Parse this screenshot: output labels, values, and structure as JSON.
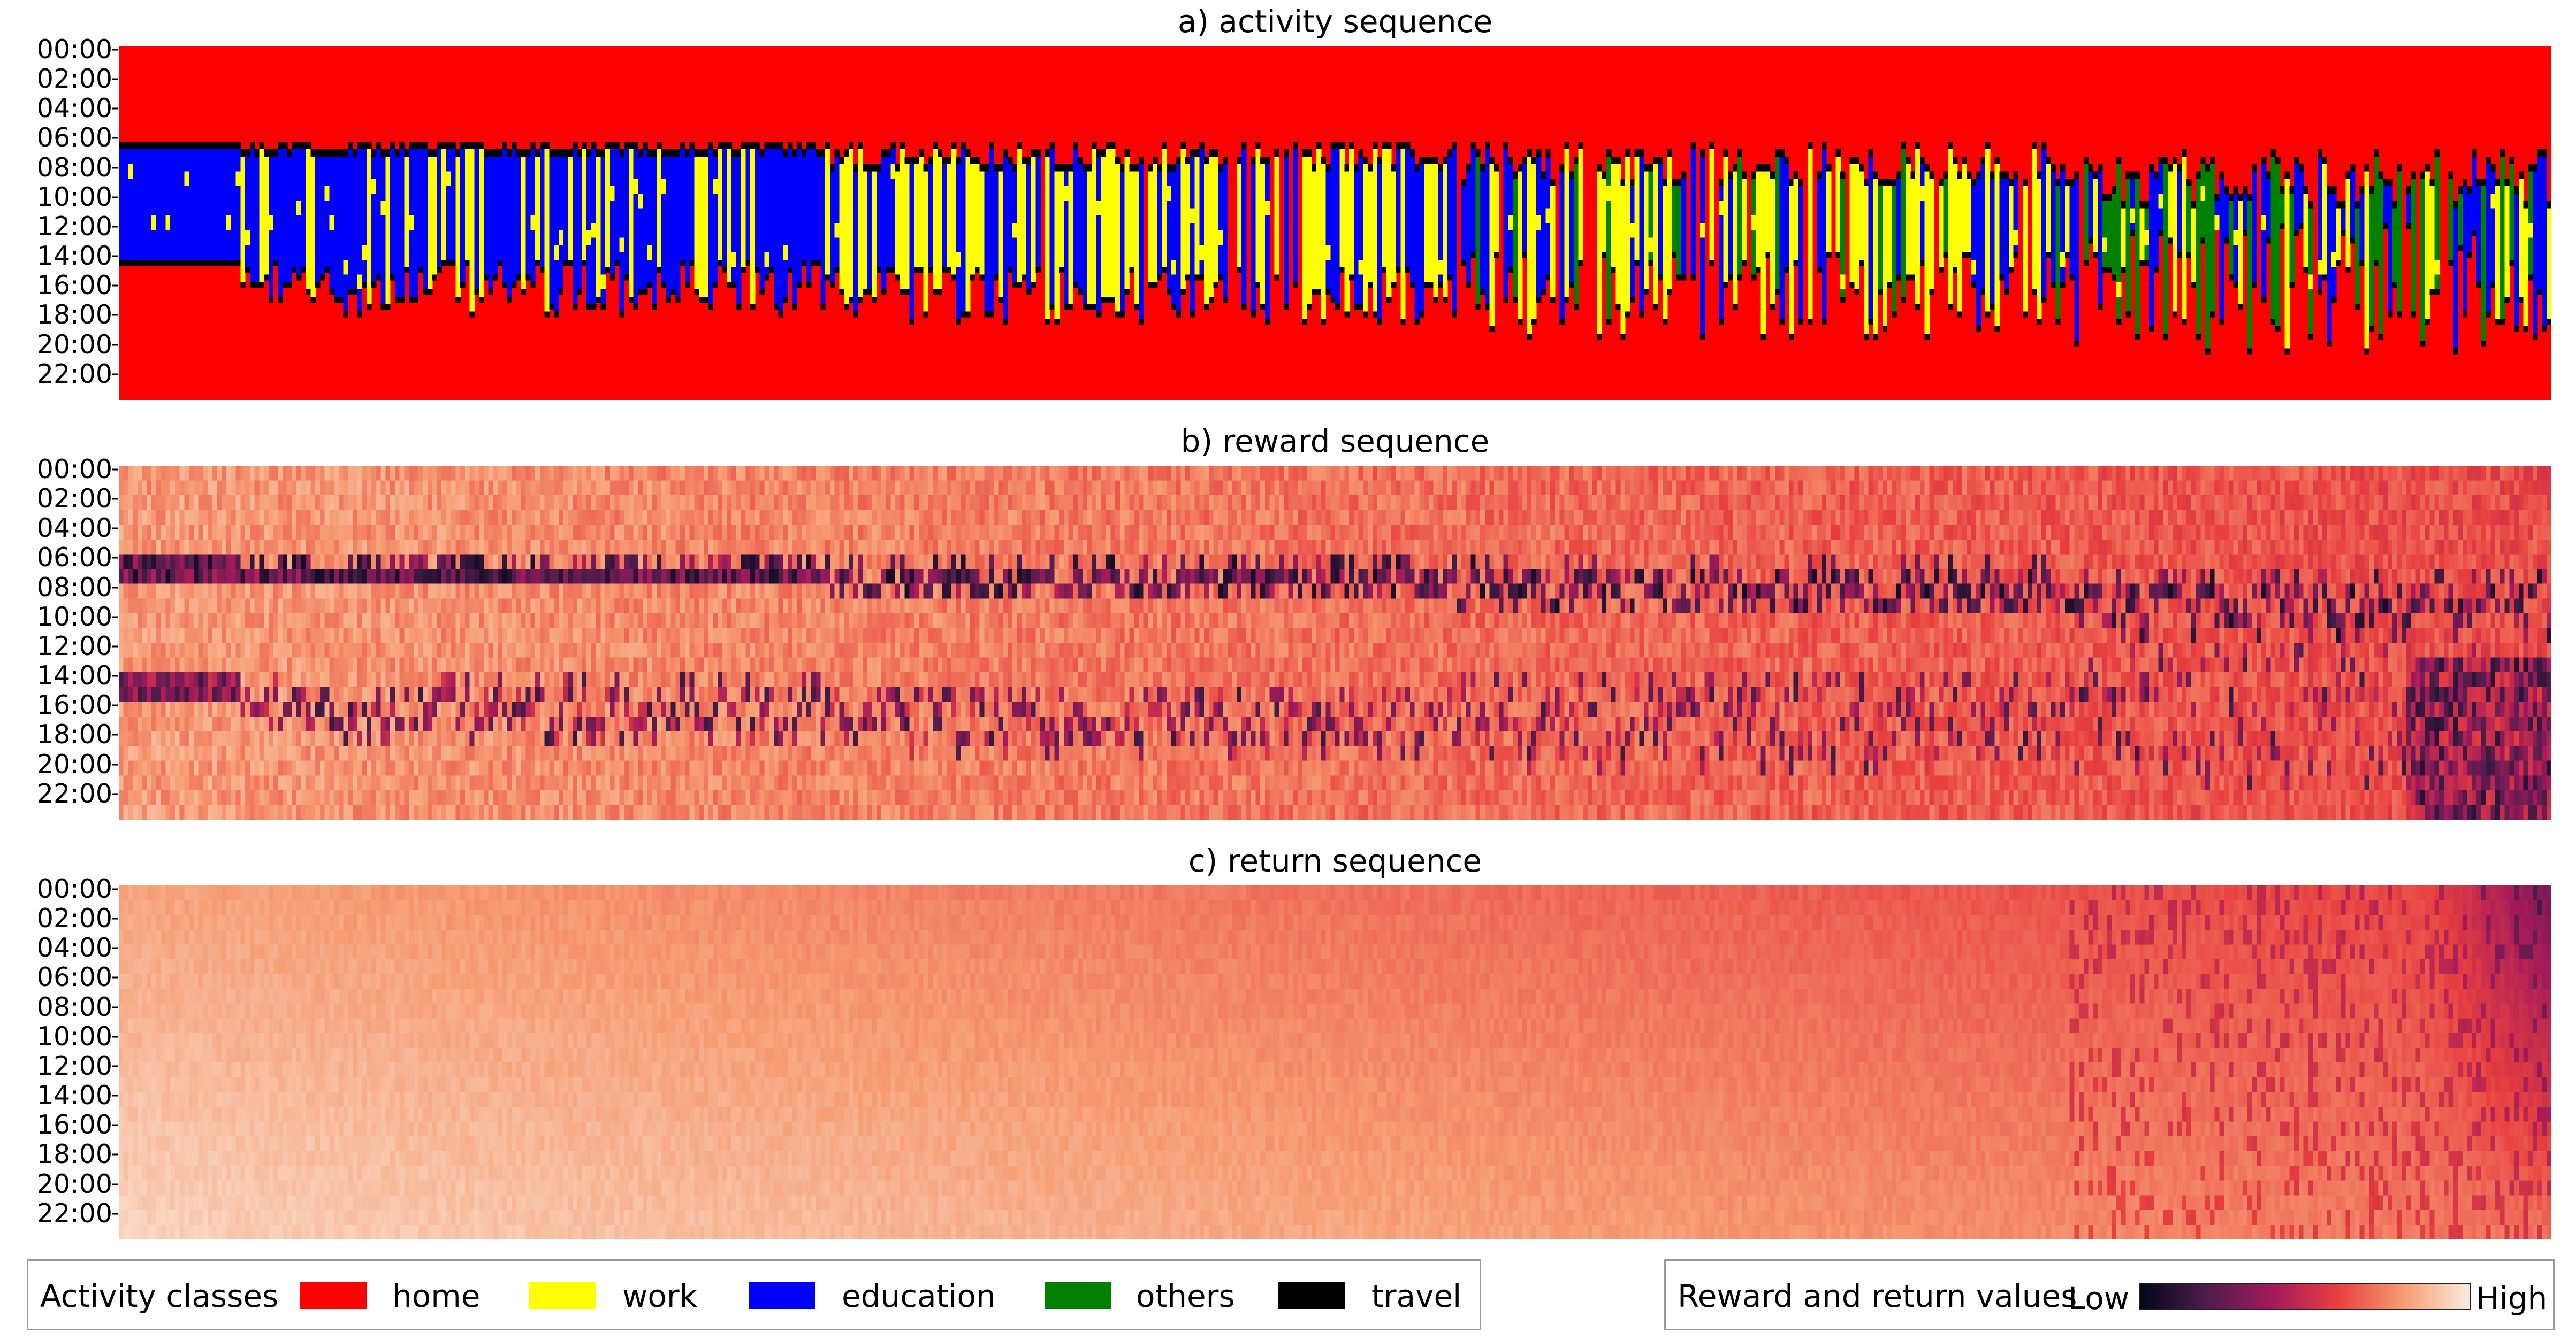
{
  "chart_data": [
    {
      "type": "heatmap",
      "title": "a) activity sequence",
      "y_tick_labels": [
        "00:00",
        "02:00",
        "04:00",
        "06:00",
        "08:00",
        "10:00",
        "12:00",
        "14:00",
        "16:00",
        "18:00",
        "20:00",
        "22:00"
      ],
      "value_classes": [
        "home",
        "work",
        "education",
        "others",
        "travel"
      ],
      "colors": {
        "home": "#ff0000",
        "work": "#ffff00",
        "education": "#0000ff",
        "others": "#008000",
        "travel": "#000000"
      },
      "description_of_pattern": {
        "columns_with_education_block": [
          0,
          0.29
        ],
        "columns_with_work_block": [
          0.2,
          0.78
        ],
        "typical_out_of_home_start": "06:00-08:00",
        "typical_out_of_home_end": "14:00-20:00"
      }
    },
    {
      "type": "heatmap",
      "title": "b) reward sequence",
      "y_tick_labels": [
        "00:00",
        "02:00",
        "04:00",
        "06:00",
        "08:00",
        "10:00",
        "12:00",
        "14:00",
        "16:00",
        "18:00",
        "20:00",
        "22:00"
      ],
      "colormap": "rocket",
      "value_range": [
        "Low",
        "High"
      ]
    },
    {
      "type": "heatmap",
      "title": "c) return sequence",
      "y_tick_labels": [
        "00:00",
        "02:00",
        "04:00",
        "06:00",
        "08:00",
        "10:00",
        "12:00",
        "14:00",
        "16:00",
        "18:00",
        "20:00",
        "22:00"
      ],
      "colormap": "rocket",
      "value_range": [
        "Low",
        "High"
      ]
    }
  ],
  "panels": {
    "a_title": "a) activity sequence",
    "b_title": "b) reward sequence",
    "c_title": "c) return sequence",
    "hour_ticks": [
      "00:00",
      "02:00",
      "04:00",
      "06:00",
      "08:00",
      "10:00",
      "12:00",
      "14:00",
      "16:00",
      "18:00",
      "20:00",
      "22:00"
    ]
  },
  "legend_activity": {
    "title": "Activity classes",
    "items": [
      {
        "label": "home",
        "color": "#ff0000"
      },
      {
        "label": "work",
        "color": "#ffff00"
      },
      {
        "label": "education",
        "color": "#0000ff"
      },
      {
        "label": "others",
        "color": "#008000"
      },
      {
        "label": "travel",
        "color": "#000000"
      }
    ]
  },
  "legend_values": {
    "title": "Reward and return values",
    "low_label": "Low",
    "high_label": "High",
    "gradient_colors": [
      "#03051a",
      "#4c1d4b",
      "#a11a5b",
      "#e83f3f",
      "#f69c73",
      "#faebdd"
    ]
  }
}
